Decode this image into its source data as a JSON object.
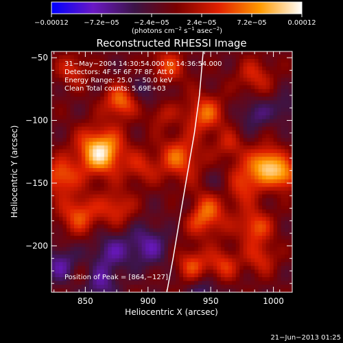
{
  "chart_data": {
    "type": "heatmap",
    "title": "Reconstructed RHESSI Image",
    "xlabel": "Heliocentric X (arcsec)",
    "ylabel": "Heliocentric Y (arcsec)",
    "xlim": [
      823,
      1015
    ],
    "ylim": [
      -237,
      -45
    ],
    "xticks": [
      850,
      900,
      950,
      1000
    ],
    "xtick_labels": [
      "850",
      "900",
      "950",
      "1000"
    ],
    "yticks": [
      -50,
      -100,
      -150,
      -200
    ],
    "ytick_labels": [
      "−50",
      "−100",
      "−150",
      "−200"
    ],
    "colorbar": {
      "range": [
        -0.00012,
        0.00012
      ],
      "ticks": [
        -0.00012,
        -7.2e-05,
        -2.4e-05,
        2.4e-05,
        7.2e-05,
        0.00012
      ],
      "tick_labels": [
        "−0.00012",
        "−7.2e−05",
        "−2.4e−05",
        "2.4e−05",
        "7.2e−05",
        "0.00012"
      ],
      "units": "(photons cm",
      "units_exp1": "−2",
      "units_mid": " s",
      "units_exp2": "−1",
      "units_mid2": " asec",
      "units_exp3": "−2",
      "units_end": ")",
      "colors": [
        "#0000ff",
        "#6a18c4",
        "#3c1446",
        "#7a0000",
        "#e02000",
        "#ff9a00",
        "#ffffff"
      ]
    },
    "annotations": [
      "31−May−2004 14:30:54.000 to 14:36:54.000",
      "Detectors: 4F 5F 6F 7F 8F, Att 0",
      "Energy Range: 25.0 − 50.0 keV",
      "Clean    Total counts: 5.69E+03"
    ],
    "peak_label": "Position of Peak = [864,−127]",
    "peak": [
      864,
      -127
    ],
    "limb": [
      [
        944,
        -45
      ],
      [
        941,
        -80
      ],
      [
        937,
        -110
      ],
      [
        931,
        -145
      ],
      [
        925,
        -180
      ],
      [
        920,
        -210
      ],
      [
        915,
        -237
      ]
    ],
    "blobs": [
      {
        "x": 862,
        "y": -125,
        "v": 1.0,
        "s": 13
      },
      {
        "x": 878,
        "y": -85,
        "v": 0.65,
        "s": 9
      },
      {
        "x": 830,
        "y": -145,
        "v": 0.6,
        "s": 10
      },
      {
        "x": 845,
        "y": -175,
        "v": 0.55,
        "s": 11
      },
      {
        "x": 875,
        "y": -170,
        "v": 0.45,
        "s": 10
      },
      {
        "x": 895,
        "y": -138,
        "v": 0.35,
        "s": 9
      },
      {
        "x": 840,
        "y": -60,
        "v": 0.4,
        "s": 9
      },
      {
        "x": 915,
        "y": -58,
        "v": 0.5,
        "s": 10
      },
      {
        "x": 945,
        "y": -95,
        "v": 0.6,
        "s": 11
      },
      {
        "x": 925,
        "y": -130,
        "v": 0.6,
        "s": 12
      },
      {
        "x": 945,
        "y": -175,
        "v": 0.65,
        "s": 12
      },
      {
        "x": 975,
        "y": -150,
        "v": 0.55,
        "s": 11
      },
      {
        "x": 995,
        "y": -135,
        "v": 0.85,
        "s": 10
      },
      {
        "x": 1010,
        "y": -145,
        "v": 0.6,
        "s": 8
      },
      {
        "x": 985,
        "y": -185,
        "v": 0.55,
        "s": 10
      },
      {
        "x": 990,
        "y": -210,
        "v": 0.4,
        "s": 9
      },
      {
        "x": 960,
        "y": -215,
        "v": 0.45,
        "s": 9
      },
      {
        "x": 935,
        "y": -215,
        "v": 0.5,
        "s": 9
      },
      {
        "x": 985,
        "y": -65,
        "v": 0.4,
        "s": 10
      },
      {
        "x": 965,
        "y": -120,
        "v": 0.35,
        "s": 8
      },
      {
        "x": 910,
        "y": -95,
        "v": 0.3,
        "s": 8
      },
      {
        "x": 850,
        "y": -225,
        "v": 0.25,
        "s": 8
      },
      {
        "x": 900,
        "y": -200,
        "v": -0.45,
        "s": 12
      },
      {
        "x": 870,
        "y": -205,
        "v": -0.4,
        "s": 11
      },
      {
        "x": 830,
        "y": -215,
        "v": -0.45,
        "s": 10
      },
      {
        "x": 860,
        "y": -230,
        "v": -0.5,
        "s": 10
      },
      {
        "x": 960,
        "y": -150,
        "v": -0.3,
        "s": 8
      },
      {
        "x": 985,
        "y": -95,
        "v": -0.35,
        "s": 9
      },
      {
        "x": 900,
        "y": -75,
        "v": -0.3,
        "s": 9
      },
      {
        "x": 1010,
        "y": -90,
        "v": -0.3,
        "s": 8
      },
      {
        "x": 945,
        "y": -237,
        "v": -0.35,
        "s": 8
      },
      {
        "x": 930,
        "y": -170,
        "v": -0.25,
        "s": 7
      }
    ]
  },
  "footer": {
    "timestamp": "21−Jun−2013 01:25"
  }
}
